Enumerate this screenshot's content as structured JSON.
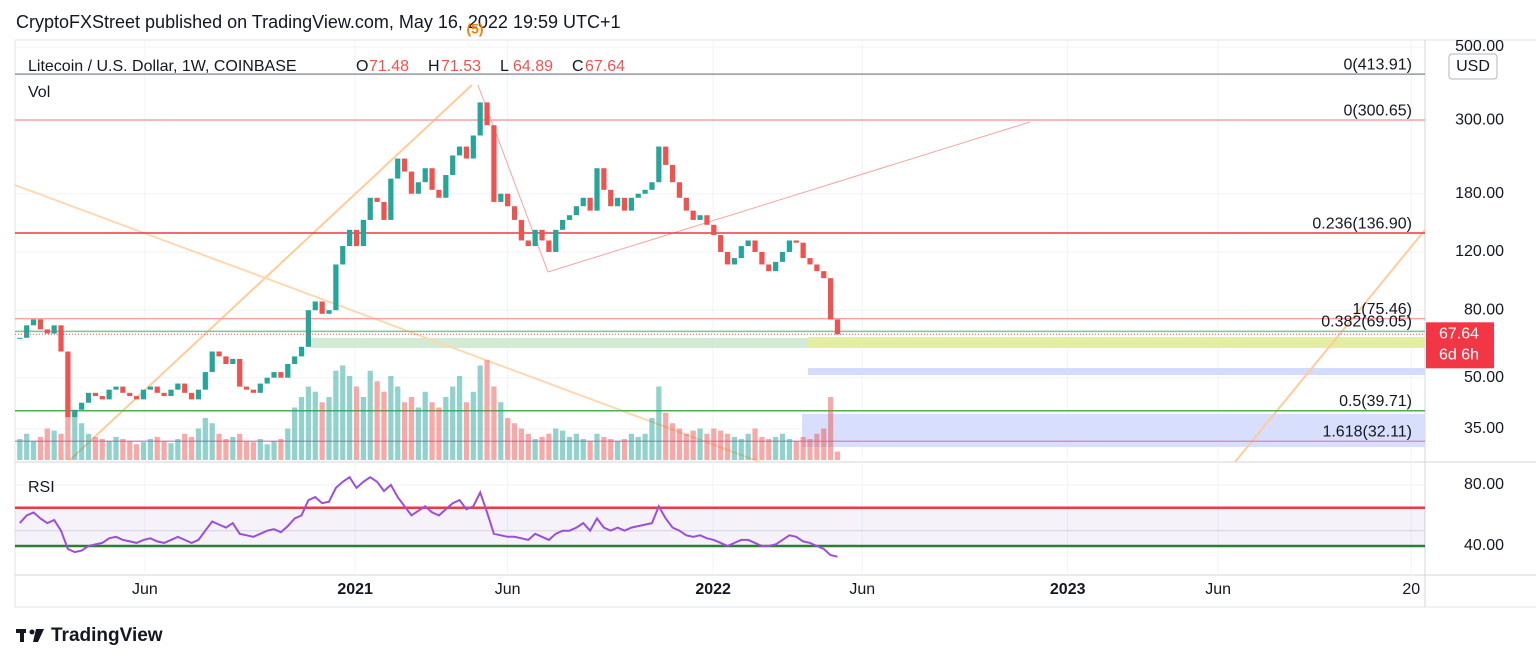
{
  "header": {
    "publisher": "CryptoFXStreet published on TradingView.com, May 16, 2022 19:59 UTC+1",
    "footer_logo": "TradingView"
  },
  "chart_data": {
    "type": "candlestick",
    "title": "Litecoin / U.S. Dollar, 1W, COINBASE",
    "ohlc": [
      {
        "key": "O",
        "value": 71.48
      },
      {
        "key": "H",
        "value": 71.53
      },
      {
        "key": "L",
        "value": 64.89
      },
      {
        "key": "C",
        "value": 67.64
      }
    ],
    "wave_label": "(5)",
    "currency": "USD",
    "volume_label": "Vol",
    "countdown": "6d 6h",
    "log_scale": true,
    "up_color": "#26a69a",
    "down_color": "#ef5350",
    "xlim": [
      -0.7,
      204.5
    ],
    "xticks": [
      {
        "value": 18.2,
        "label": "Jun"
      },
      {
        "value": 48.8,
        "label": "2021"
      },
      {
        "value": 71,
        "label": "Jun"
      },
      {
        "value": 100.9,
        "label": "2022"
      },
      {
        "value": 122.6,
        "label": "Jun"
      },
      {
        "value": 152.5,
        "label": "2023"
      },
      {
        "value": 174.4,
        "label": "Jun"
      },
      {
        "value": 202.5,
        "label": "20"
      }
    ],
    "ylim": [
      27.8,
      525
    ],
    "yticks": [
      {
        "value": 500,
        "label": "500.00"
      },
      {
        "value": 300,
        "label": "300.00"
      },
      {
        "value": 180,
        "label": "180.00"
      },
      {
        "value": 120,
        "label": "120.00"
      },
      {
        "value": 80,
        "label": "80.00"
      },
      {
        "value": 50,
        "label": "50.00"
      },
      {
        "value": 35,
        "label": "35.00"
      }
    ],
    "levels": [
      {
        "value": 413.91,
        "label": "0(413.91)",
        "color": "#9598a1"
      },
      {
        "value": 300.65,
        "label": "0(300.65)",
        "color": "#f5a3a3"
      },
      {
        "value": 136.9,
        "label": "0.236(136.90)",
        "color": "#f23645"
      },
      {
        "value": 75.46,
        "label": "1(75.46)",
        "color": "#f5a3a3"
      },
      {
        "value": 69.05,
        "label": "0.382(69.05)",
        "color": "#81c784"
      },
      {
        "value": 39.71,
        "label": "0.5(39.71)",
        "color": "#4caf50"
      },
      {
        "value": 32.11,
        "label": "1.618(32.11)",
        "color": "#d88fc4"
      }
    ],
    "close": [
      66,
      72,
      75,
      70,
      68,
      72,
      60,
      38,
      40,
      42,
      45,
      44,
      43,
      46,
      47,
      45,
      44,
      43,
      46,
      47,
      45,
      44,
      46,
      48,
      45,
      43,
      46,
      52,
      60,
      58,
      55,
      57,
      47,
      46,
      45,
      48,
      50,
      52,
      50,
      55,
      58,
      62,
      80,
      85,
      78,
      80,
      110,
      125,
      140,
      125,
      150,
      175,
      170,
      150,
      200,
      230,
      210,
      180,
      195,
      215,
      185,
      175,
      205,
      235,
      250,
      230,
      270,
      340,
      290,
      170,
      180,
      165,
      150,
      130,
      125,
      140,
      130,
      120,
      140,
      150,
      155,
      165,
      175,
      160,
      215,
      185,
      165,
      175,
      160,
      175,
      180,
      185,
      195,
      250,
      220,
      195,
      175,
      160,
      150,
      155,
      145,
      135,
      120,
      110,
      115,
      125,
      130,
      120,
      110,
      105,
      112,
      120,
      130,
      128,
      115,
      110,
      105,
      100,
      75,
      67.64
    ],
    "volume": [
      20,
      25,
      18,
      22,
      30,
      28,
      25,
      60,
      45,
      35,
      25,
      22,
      20,
      18,
      22,
      20,
      18,
      15,
      17,
      20,
      22,
      18,
      16,
      20,
      25,
      22,
      30,
      40,
      35,
      25,
      20,
      22,
      25,
      18,
      17,
      20,
      15,
      18,
      20,
      30,
      50,
      60,
      70,
      65,
      55,
      60,
      85,
      90,
      80,
      70,
      60,
      85,
      75,
      65,
      80,
      70,
      55,
      60,
      50,
      65,
      55,
      50,
      60,
      70,
      80,
      55,
      65,
      90,
      95,
      70,
      55,
      40,
      35,
      30,
      25,
      20,
      22,
      25,
      30,
      28,
      22,
      25,
      20,
      18,
      25,
      22,
      20,
      18,
      20,
      25,
      22,
      25,
      40,
      70,
      45,
      35,
      30,
      25,
      28,
      30,
      25,
      30,
      28,
      25,
      22,
      20,
      25,
      30,
      22,
      20,
      22,
      25,
      20,
      18,
      22,
      20,
      25,
      30,
      60,
      8
    ],
    "volume_max": 100,
    "rsi": {
      "label": "RSI",
      "color": "#9c4fd6",
      "ylim": [
        21,
        93
      ],
      "yticks": [
        {
          "value": 80,
          "label": "80.00"
        },
        {
          "value": 40,
          "label": "40.00"
        }
      ],
      "upper": 65,
      "middle": 50,
      "lower": 40,
      "values": [
        55,
        60,
        62,
        58,
        55,
        57,
        50,
        38,
        36,
        37,
        40,
        41,
        42,
        45,
        46,
        44,
        43,
        42,
        44,
        45,
        43,
        42,
        44,
        46,
        44,
        42,
        44,
        50,
        56,
        54,
        52,
        55,
        48,
        47,
        46,
        48,
        50,
        51,
        49,
        53,
        58,
        60,
        70,
        72,
        68,
        69,
        78,
        82,
        85,
        78,
        82,
        85,
        82,
        76,
        80,
        72,
        66,
        60,
        63,
        66,
        62,
        60,
        64,
        68,
        70,
        64,
        66,
        75,
        62,
        48,
        47,
        46,
        46,
        45,
        44,
        48,
        46,
        44,
        48,
        50,
        50,
        52,
        55,
        50,
        58,
        52,
        50,
        52,
        50,
        52,
        53,
        54,
        55,
        66,
        58,
        52,
        50,
        47,
        46,
        47,
        45,
        44,
        42,
        40,
        42,
        44,
        44,
        42,
        40,
        40,
        41,
        44,
        47,
        46,
        43,
        42,
        40,
        38,
        34,
        33
      ]
    }
  }
}
